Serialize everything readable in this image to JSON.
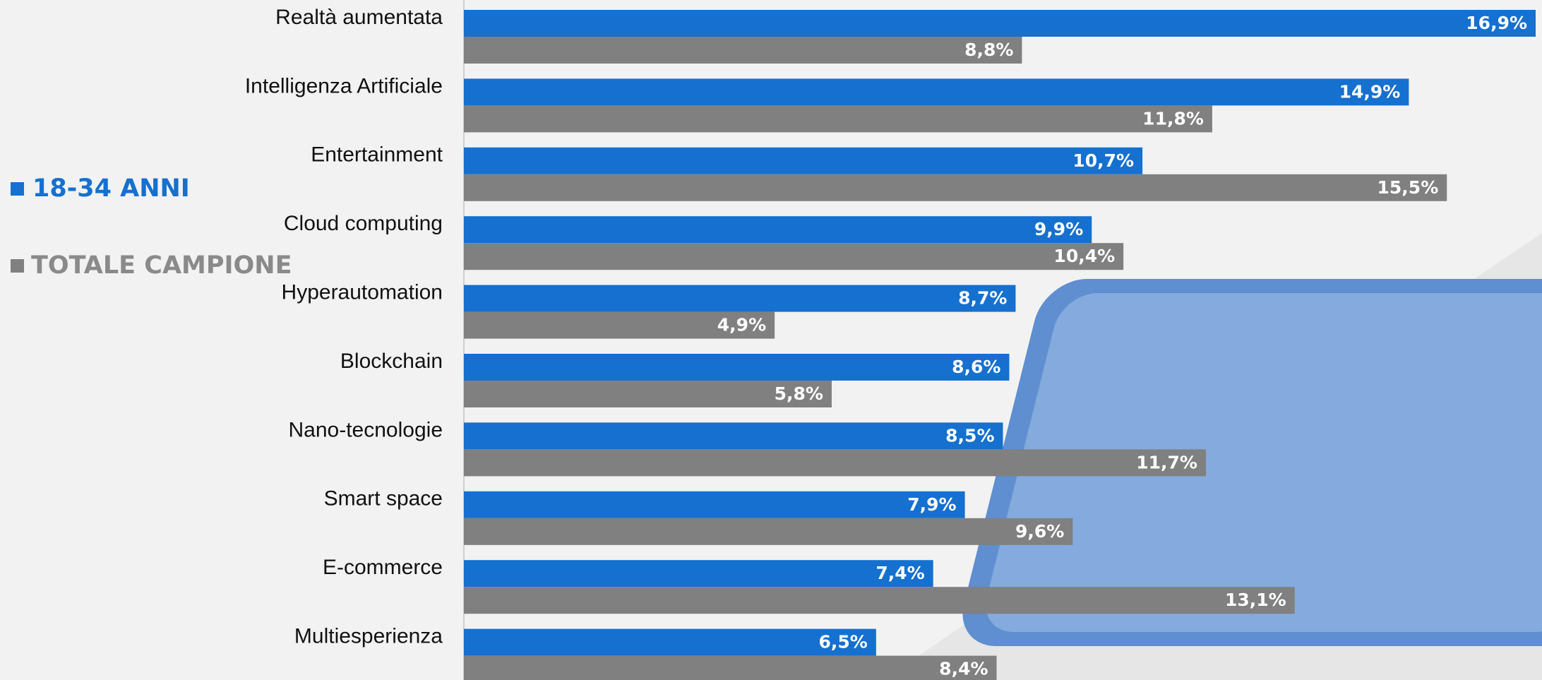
{
  "chart_data": {
    "type": "hbar",
    "categories": [
      "Realtà aumentata",
      "Intelligenza Artificiale",
      "Entertainment",
      "Cloud computing",
      "Hyperautomation",
      "Blockchain",
      "Nano-tecnologie",
      "Smart space",
      "E-commerce",
      "Multiesperienza"
    ],
    "series": [
      {
        "name": "18-34 ANNI",
        "color": "#1570cf",
        "values": [
          16.9,
          14.9,
          10.7,
          9.9,
          8.7,
          8.6,
          8.5,
          7.9,
          7.4,
          6.5
        ],
        "value_labels": [
          "16,9%",
          "14,9%",
          "10,7%",
          "9,9%",
          "8,7%",
          "8,6%",
          "8,5%",
          "7,9%",
          "7,4%",
          "6,5%"
        ]
      },
      {
        "name": "TOTALE CAMPIONE",
        "color": "#808080",
        "values": [
          8.8,
          11.8,
          15.5,
          10.4,
          4.9,
          5.8,
          11.7,
          9.6,
          13.1,
          8.4
        ],
        "value_labels": [
          "8,8%",
          "11,8%",
          "15,5%",
          "10,4%",
          "4,9%",
          "5,8%",
          "11,7%",
          "9,6%",
          "13,1%",
          "8,4%"
        ]
      }
    ],
    "xlim": [
      0,
      17
    ]
  }
}
